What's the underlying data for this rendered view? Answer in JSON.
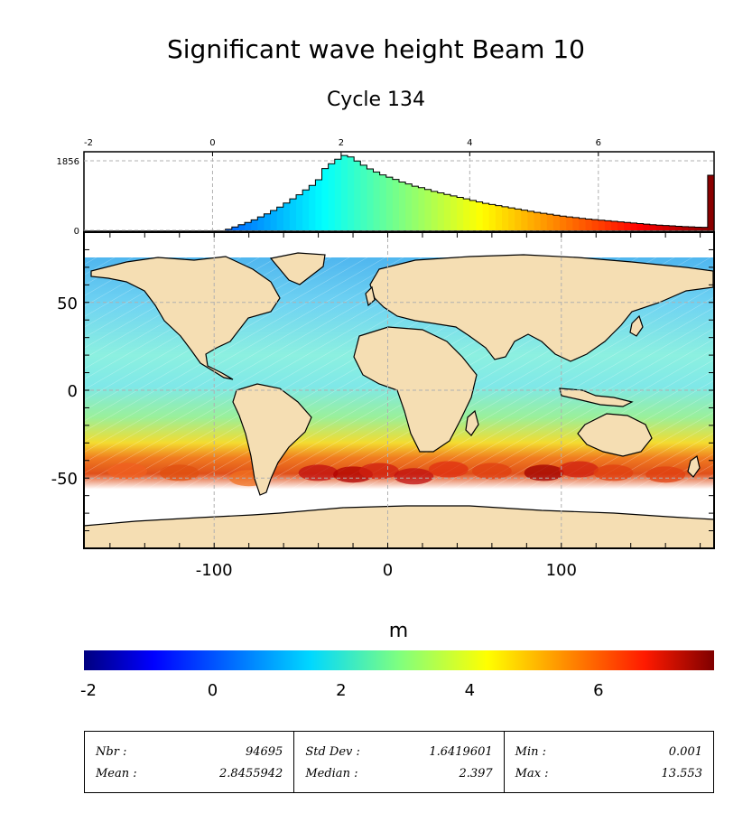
{
  "title": "Significant wave height Beam 10",
  "subtitle": "Cycle 134",
  "chart_data": [
    {
      "type": "bar",
      "title": "",
      "xlim": [
        -2,
        7.8
      ],
      "x_ticks": [
        "-2",
        "0",
        "2",
        "4",
        "6"
      ],
      "y_ticks": [
        "0",
        "1856"
      ],
      "ylim": [
        0,
        2050
      ],
      "grid": true,
      "bins": [
        {
          "x": 0.2,
          "v": 30
        },
        {
          "x": 0.3,
          "v": 90
        },
        {
          "x": 0.4,
          "v": 150
        },
        {
          "x": 0.5,
          "v": 210
        },
        {
          "x": 0.6,
          "v": 280
        },
        {
          "x": 0.7,
          "v": 360
        },
        {
          "x": 0.8,
          "v": 440
        },
        {
          "x": 0.9,
          "v": 530
        },
        {
          "x": 1.0,
          "v": 620
        },
        {
          "x": 1.1,
          "v": 730
        },
        {
          "x": 1.2,
          "v": 840
        },
        {
          "x": 1.3,
          "v": 950
        },
        {
          "x": 1.4,
          "v": 1080
        },
        {
          "x": 1.5,
          "v": 1200
        },
        {
          "x": 1.6,
          "v": 1350
        },
        {
          "x": 1.7,
          "v": 1650
        },
        {
          "x": 1.8,
          "v": 1780
        },
        {
          "x": 1.9,
          "v": 1900
        },
        {
          "x": 2.0,
          "v": 2000
        },
        {
          "x": 2.1,
          "v": 1960
        },
        {
          "x": 2.2,
          "v": 1850
        },
        {
          "x": 2.3,
          "v": 1740
        },
        {
          "x": 2.4,
          "v": 1640
        },
        {
          "x": 2.5,
          "v": 1560
        },
        {
          "x": 2.6,
          "v": 1480
        },
        {
          "x": 2.7,
          "v": 1420
        },
        {
          "x": 2.8,
          "v": 1360
        },
        {
          "x": 2.9,
          "v": 1290
        },
        {
          "x": 3.0,
          "v": 1240
        },
        {
          "x": 3.1,
          "v": 1180
        },
        {
          "x": 3.2,
          "v": 1140
        },
        {
          "x": 3.3,
          "v": 1090
        },
        {
          "x": 3.4,
          "v": 1040
        },
        {
          "x": 3.5,
          "v": 1000
        },
        {
          "x": 3.6,
          "v": 960
        },
        {
          "x": 3.7,
          "v": 920
        },
        {
          "x": 3.8,
          "v": 880
        },
        {
          "x": 3.9,
          "v": 840
        },
        {
          "x": 4.0,
          "v": 800
        },
        {
          "x": 4.1,
          "v": 760
        },
        {
          "x": 4.2,
          "v": 720
        },
        {
          "x": 4.3,
          "v": 690
        },
        {
          "x": 4.4,
          "v": 660
        },
        {
          "x": 4.5,
          "v": 630
        },
        {
          "x": 4.6,
          "v": 600
        },
        {
          "x": 4.7,
          "v": 570
        },
        {
          "x": 4.8,
          "v": 540
        },
        {
          "x": 4.9,
          "v": 510
        },
        {
          "x": 5.0,
          "v": 480
        },
        {
          "x": 5.1,
          "v": 455
        },
        {
          "x": 5.2,
          "v": 430
        },
        {
          "x": 5.3,
          "v": 405
        },
        {
          "x": 5.4,
          "v": 380
        },
        {
          "x": 5.5,
          "v": 360
        },
        {
          "x": 5.6,
          "v": 340
        },
        {
          "x": 5.7,
          "v": 320
        },
        {
          "x": 5.8,
          "v": 300
        },
        {
          "x": 5.9,
          "v": 285
        },
        {
          "x": 6.0,
          "v": 270
        },
        {
          "x": 6.1,
          "v": 255
        },
        {
          "x": 6.2,
          "v": 240
        },
        {
          "x": 6.3,
          "v": 225
        },
        {
          "x": 6.4,
          "v": 210
        },
        {
          "x": 6.5,
          "v": 195
        },
        {
          "x": 6.6,
          "v": 180
        },
        {
          "x": 6.7,
          "v": 165
        },
        {
          "x": 6.8,
          "v": 150
        },
        {
          "x": 6.9,
          "v": 140
        },
        {
          "x": 7.0,
          "v": 130
        },
        {
          "x": 7.1,
          "v": 120
        },
        {
          "x": 7.2,
          "v": 110
        },
        {
          "x": 7.3,
          "v": 100
        },
        {
          "x": 7.4,
          "v": 92
        },
        {
          "x": 7.5,
          "v": 85
        },
        {
          "x": 7.6,
          "v": 80
        },
        {
          "x": 7.7,
          "v": 1470
        }
      ]
    },
    {
      "type": "heatmap",
      "title": "",
      "xlim": [
        -175,
        188
      ],
      "ylim": [
        -90,
        90
      ],
      "x_ticks": [
        "-100",
        "0",
        "100"
      ],
      "y_ticks": [
        "50",
        "0",
        "-50"
      ],
      "grid": true,
      "colorscale": "jet",
      "value_range": [
        -2,
        7.8
      ]
    }
  ],
  "colorbar": {
    "label": "m",
    "range": [
      -2,
      7.8
    ],
    "ticks": [
      "-2",
      "0",
      "2",
      "4",
      "6"
    ]
  },
  "stats": [
    {
      "label1": "Nbr :",
      "value1": "94695",
      "label2": "Mean :",
      "value2": "2.8455942"
    },
    {
      "label1": "Std Dev :",
      "value1": "1.6419601",
      "label2": "Median :",
      "value2": "2.397"
    },
    {
      "label1": "Min :",
      "value1": "0.001",
      "label2": "Max :",
      "value2": "13.553"
    }
  ],
  "colors": {
    "land": "#f5deb3",
    "frame": "#000000",
    "grid": "#b0b0b0"
  }
}
